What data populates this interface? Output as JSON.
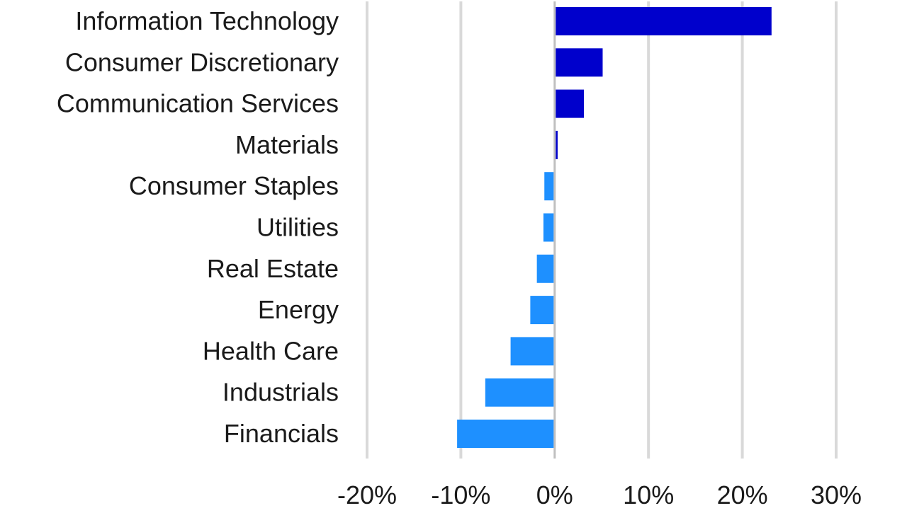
{
  "chart_data": {
    "type": "bar",
    "orientation": "horizontal",
    "categories": [
      "Information Technology",
      "Consumer Discretionary",
      "Communication Services",
      "Materials",
      "Consumer Staples",
      "Utilities",
      "Real Estate",
      "Energy",
      "Health Care",
      "Industrials",
      "Financials"
    ],
    "values": [
      23.0,
      5.0,
      3.0,
      0.2,
      -1.1,
      -1.2,
      -1.9,
      -2.6,
      -4.7,
      -7.4,
      -10.4
    ],
    "xlim": [
      -20,
      30
    ],
    "x_ticks": [
      -20,
      -10,
      0,
      10,
      20,
      30
    ],
    "x_tick_labels": [
      "-20%",
      "-10%",
      "0%",
      "10%",
      "20%",
      "30%"
    ],
    "title": "",
    "xlabel": "",
    "ylabel": "",
    "grid": "vertical",
    "legend": "none",
    "colors": {
      "positive": "#0000CC",
      "negative": "#1E90FF",
      "grid": "#D9D9D9",
      "zero_line": "#BFBFBF"
    }
  }
}
